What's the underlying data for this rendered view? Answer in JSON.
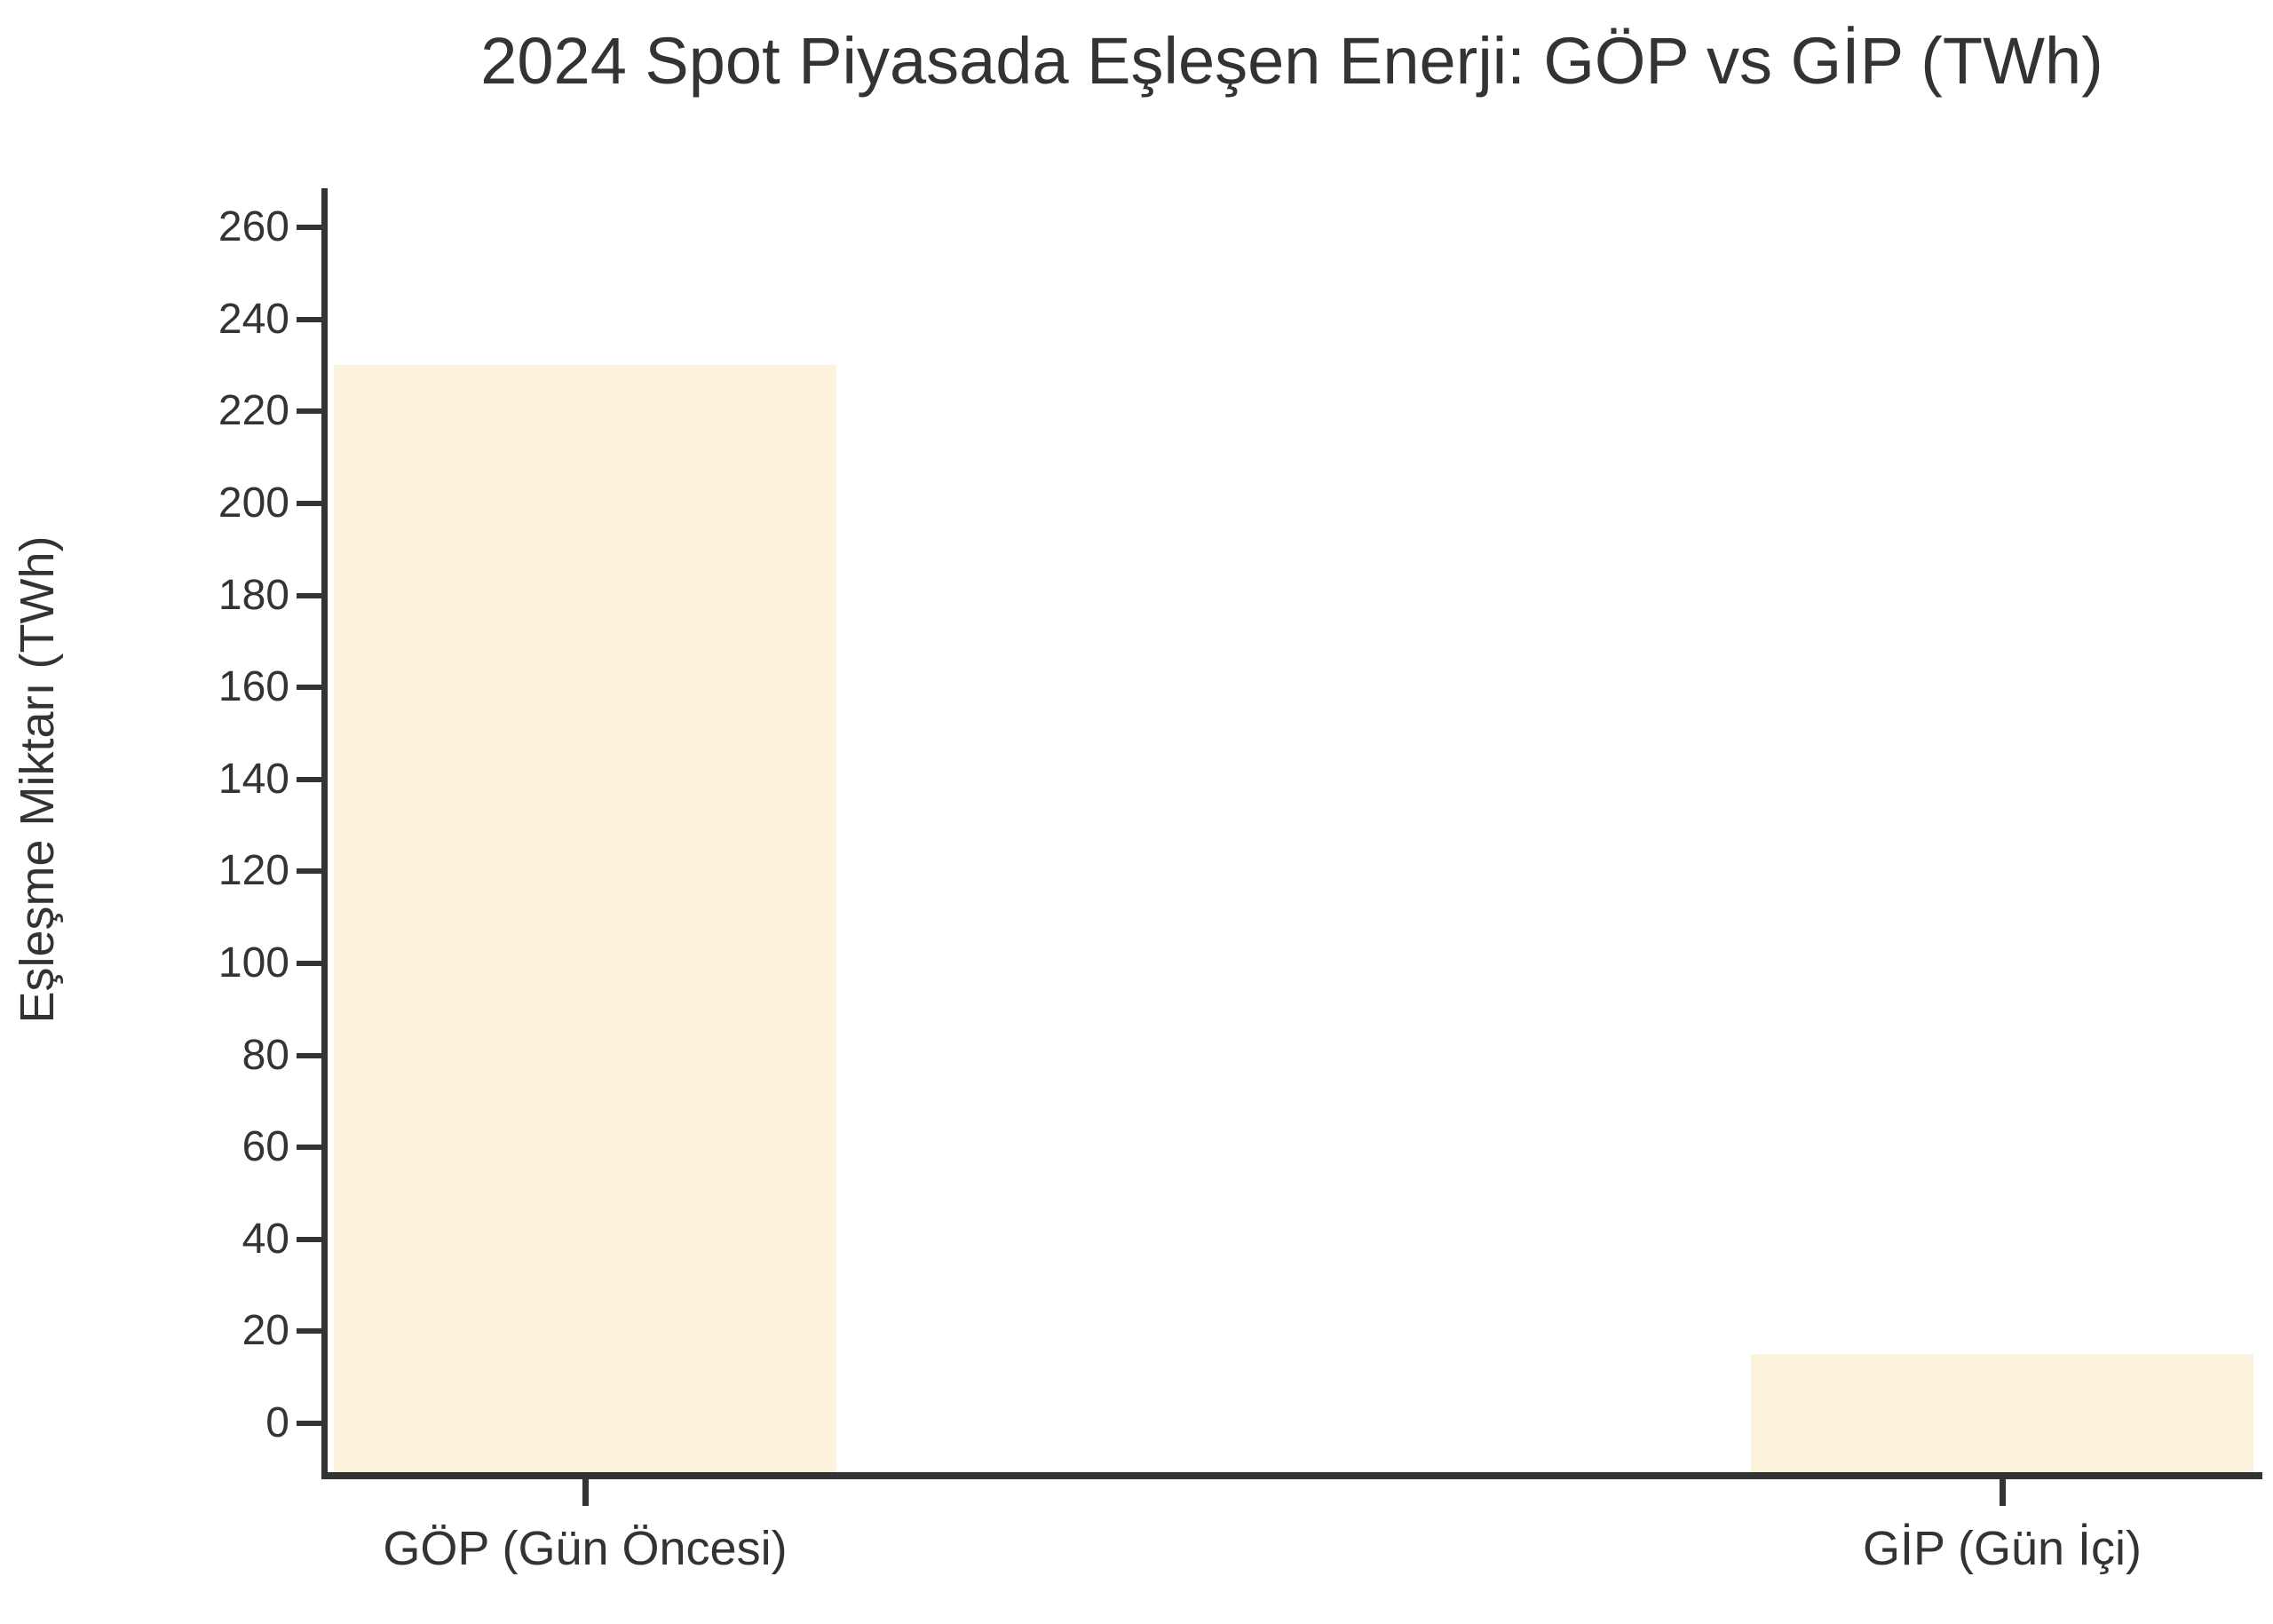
{
  "chart_data": {
    "type": "bar",
    "title": "2024 Spot Piyasada Eşleşen Enerji: GÖP vs GİP (TWh)",
    "ylabel": "Eşleşme Miktarı (TWh)",
    "xlabel": "",
    "categories": [
      "GÖP (Gün Öncesi)",
      "GİP (Gün İçi)"
    ],
    "values": [
      230,
      15
    ],
    "yticks": [
      0,
      20,
      40,
      60,
      80,
      100,
      120,
      140,
      160,
      180,
      200,
      220,
      240,
      260
    ],
    "ylim": [
      -10.6,
      268.5
    ],
    "grid": false,
    "legend": null,
    "colors": {
      "bar_fill": "#FDF2DC",
      "axis": "#333333",
      "text": "#333333",
      "background": "#FFFFFF"
    }
  }
}
